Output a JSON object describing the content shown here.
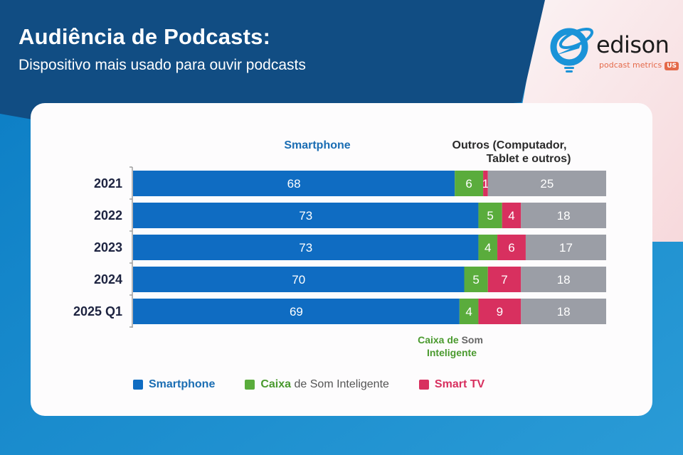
{
  "header": {
    "title": "Audiência de Podcasts:",
    "subtitle": "Dispositivo mais usado para ouvir podcasts"
  },
  "logo": {
    "name": "edison",
    "tagline": "podcast metrics",
    "badge": "US",
    "icon": "lightbulb-orbit-icon"
  },
  "colors": {
    "smartphone": "#0f6cc2",
    "smart_speaker": "#5aac3c",
    "smart_tv": "#d8305f",
    "other": "#9b9ea6",
    "title_bg": "#114d83",
    "bg": "#1b8fd0"
  },
  "chart_data": {
    "type": "bar",
    "orientation": "horizontal",
    "stacked": true,
    "title": "Audiência de Podcasts: Dispositivo mais usado para ouvir podcasts",
    "xlabel": "",
    "ylabel": "",
    "xlim": [
      0,
      100
    ],
    "unit": "%",
    "grid": false,
    "categories": [
      "2021",
      "2022",
      "2023",
      "2024",
      "2025 Q1"
    ],
    "series": [
      {
        "name": "Smartphone",
        "values": [
          68,
          73,
          73,
          70,
          69
        ]
      },
      {
        "name": "Caixa de Som Inteligente",
        "values": [
          6,
          5,
          4,
          5,
          4
        ]
      },
      {
        "name": "Smart TV",
        "values": [
          1,
          4,
          6,
          7,
          9
        ]
      },
      {
        "name": "Outros (Computador, Tablet e outros)",
        "values": [
          25,
          18,
          17,
          18,
          18
        ]
      }
    ],
    "annotations": {
      "smartphone": "Smartphone",
      "outros_line1": "Outros (Computador,",
      "outros_line2": "Tablet e outros)",
      "caixa_part1": "Caixa de",
      "caixa_part2": "Som",
      "caixa_line2": "Inteligente"
    },
    "legend": {
      "position": "bottom",
      "items": [
        {
          "label": "Smartphone"
        },
        {
          "label_highlight": "Caixa",
          "label_rest": "de Som Inteligente"
        },
        {
          "label": "Smart TV"
        }
      ]
    }
  }
}
